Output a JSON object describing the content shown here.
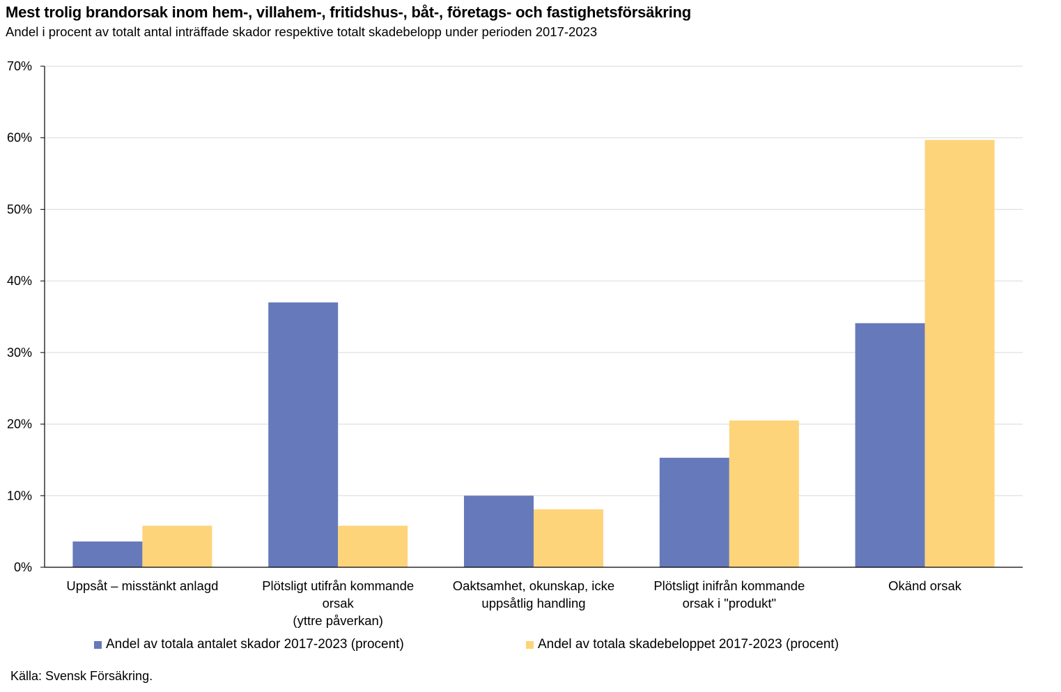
{
  "chart_data": {
    "type": "bar",
    "title": "Mest trolig brandorsak inom hem-, villahem-, fritidshus-, båt-, företags- och fastighetsförsäkring",
    "subtitle": "Andel i procent av totalt antal inträffade skador respektive totalt skadebelopp under perioden 2017-2023",
    "categories": [
      [
        "Uppsåt – misstänkt anlagd"
      ],
      [
        "Plötsligt utifrån kommande",
        "orsak",
        "(yttre påverkan)"
      ],
      [
        "Oaktsamhet, okunskap, icke",
        "uppsåtlig handling"
      ],
      [
        "Plötsligt inifrån kommande",
        "orsak i \"produkt\""
      ],
      [
        "Okänd orsak"
      ]
    ],
    "series": [
      {
        "name": "Andel av totala antalet skador 2017-2023 (procent)",
        "color": "#6679BA",
        "values": [
          3.6,
          37.0,
          10.0,
          15.3,
          34.1
        ]
      },
      {
        "name": "Andel av totala skadebeloppet 2017-2023 (procent)",
        "color": "#FED47A",
        "values": [
          5.8,
          5.8,
          8.1,
          20.5,
          59.7
        ]
      }
    ],
    "y_ticks": [
      "0%",
      "10%",
      "20%",
      "30%",
      "40%",
      "50%",
      "60%",
      "70%"
    ],
    "ylim": [
      0,
      70
    ],
    "xlabel": "",
    "ylabel": "",
    "grid": true,
    "legend_position": "bottom"
  },
  "source": "Källa: Svensk Försäkring."
}
